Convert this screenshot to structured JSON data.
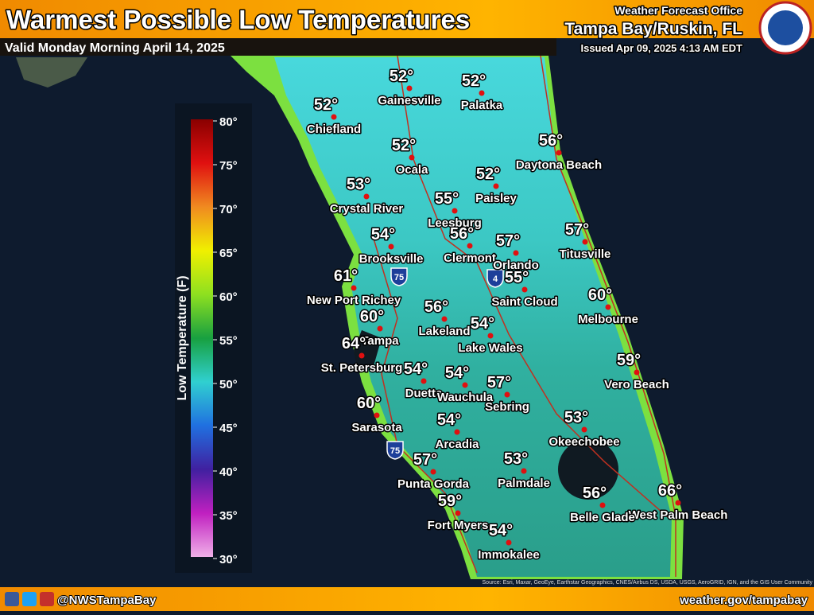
{
  "header": {
    "title": "Warmest Possible Low Temperatures",
    "valid": "Valid Monday Morning April 14, 2025",
    "office": "Weather Forecast Office",
    "location": "Tampa Bay/Ruskin, FL",
    "issued": "Issued Apr 09, 2025 4:13 AM EDT"
  },
  "legend": {
    "title": "Low Temperature (F)",
    "ticks": [
      "80°",
      "75°",
      "70°",
      "65°",
      "60°",
      "55°",
      "50°",
      "45°",
      "40°",
      "35°",
      "30°"
    ]
  },
  "shields": [
    "75",
    "4",
    "75"
  ],
  "cities": [
    {
      "name": "Gainesville",
      "temp": "52°"
    },
    {
      "name": "Palatka",
      "temp": "52°"
    },
    {
      "name": "Chiefland",
      "temp": "52°"
    },
    {
      "name": "Ocala",
      "temp": "52°"
    },
    {
      "name": "Daytona Beach",
      "temp": "56°"
    },
    {
      "name": "Paisley",
      "temp": "52°"
    },
    {
      "name": "Crystal River",
      "temp": "53°"
    },
    {
      "name": "Leesburg",
      "temp": "55°"
    },
    {
      "name": "Brooksville",
      "temp": "54°"
    },
    {
      "name": "Clermont",
      "temp": "56°"
    },
    {
      "name": "Orlando",
      "temp": "57°"
    },
    {
      "name": "Titusville",
      "temp": "57°"
    },
    {
      "name": "New Port Richey",
      "temp": "61°"
    },
    {
      "name": "Saint Cloud",
      "temp": "55°"
    },
    {
      "name": "Lakeland",
      "temp": "56°"
    },
    {
      "name": "Tampa",
      "temp": "60°"
    },
    {
      "name": "Melbourne",
      "temp": "60°"
    },
    {
      "name": "Lake Wales",
      "temp": "54°"
    },
    {
      "name": "St. Petersburg",
      "temp": "64°"
    },
    {
      "name": "Vero Beach",
      "temp": "59°"
    },
    {
      "name": "Duette",
      "temp": "54°"
    },
    {
      "name": "Wauchula",
      "temp": "54°"
    },
    {
      "name": "Sebring",
      "temp": "57°"
    },
    {
      "name": "Sarasota",
      "temp": "60°"
    },
    {
      "name": "Okeechobee",
      "temp": "53°"
    },
    {
      "name": "Arcadia",
      "temp": "54°"
    },
    {
      "name": "Punta Gorda",
      "temp": "57°"
    },
    {
      "name": "Palmdale",
      "temp": "53°"
    },
    {
      "name": "West Palm Beach",
      "temp": "66°"
    },
    {
      "name": "Belle Glade",
      "temp": "56°"
    },
    {
      "name": "Fort Myers",
      "temp": "59°"
    },
    {
      "name": "Immokalee",
      "temp": "54°"
    }
  ],
  "attribution": "Source: Esri, Maxar, GeoEye, Earthstar Geographics, CNES/Airbus DS, USDA, USGS, AeroGRID, IGN, and the GIS User Community",
  "footer": {
    "handle": "@NWSTampaBay",
    "url": "weather.gov/tampabay"
  }
}
